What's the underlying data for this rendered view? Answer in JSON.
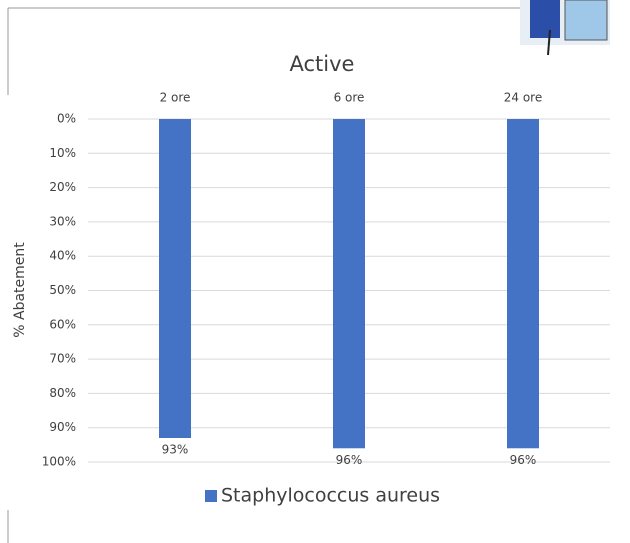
{
  "chart_data": {
    "type": "bar",
    "title": "Active",
    "y_label": "% Abatement",
    "categories": [
      "2 ore",
      "6 ore",
      "24 ore"
    ],
    "series": [
      {
        "name": "Staphylococcus aureus",
        "color": "#4472c4",
        "values": [
          93,
          96,
          96
        ],
        "value_labels": [
          "93%",
          "96%",
          "96%"
        ]
      }
    ],
    "ylim": [
      0,
      100
    ],
    "y_inverted": true,
    "yticks": [
      {
        "value": 0,
        "label": "0%"
      },
      {
        "value": 10,
        "label": "10%"
      },
      {
        "value": 20,
        "label": "20%"
      },
      {
        "value": 30,
        "label": "30%"
      },
      {
        "value": 40,
        "label": "40%"
      },
      {
        "value": 50,
        "label": "50%"
      },
      {
        "value": 60,
        "label": "60%"
      },
      {
        "value": 70,
        "label": "70%"
      },
      {
        "value": 80,
        "label": "80%"
      },
      {
        "value": 90,
        "label": "90%"
      },
      {
        "value": 100,
        "label": "100%"
      }
    ],
    "grid": true,
    "legend": "bottom"
  }
}
